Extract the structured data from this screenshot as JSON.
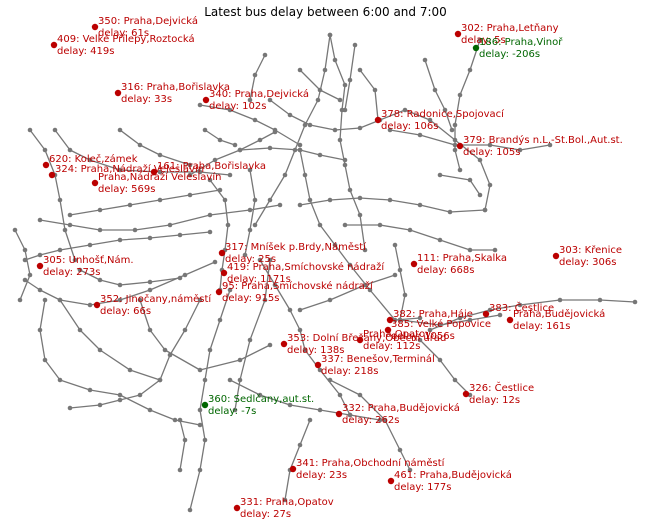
{
  "title": "Latest bus delay between 6:00 and 7:00",
  "colors": {
    "late": "#bb0000",
    "early": "#006600",
    "network": "#777777"
  },
  "stops": [
    {
      "line": "350",
      "stop": "Praha,Dejvická",
      "delay": "61s",
      "status": "late"
    },
    {
      "line": "409",
      "stop": "Velké Přílepy,Roztocká",
      "delay": "419s",
      "status": "late"
    },
    {
      "line": "302",
      "stop": "Praha,Letňany",
      "delay": "5s",
      "status": "late"
    },
    {
      "line": "186",
      "stop": "Praha,Vinoř",
      "delay": "-206s",
      "status": "early"
    },
    {
      "line": "316",
      "stop": "Praha,Bořislavka",
      "delay": "33s",
      "status": "late"
    },
    {
      "line": "340",
      "stop": "Praha,Dejvická",
      "delay": "102s",
      "status": "late"
    },
    {
      "line": "378",
      "stop": "Radonice,Spojovací",
      "delay": "106s",
      "status": "late"
    },
    {
      "line": "379",
      "stop": "Brandýs n.L.-St.Bol.,Aut.st.",
      "delay": "105s",
      "status": "late"
    },
    {
      "line": "620",
      "stop": "Koleč,zámek",
      "delay": "",
      "status": "late"
    },
    {
      "line": "324",
      "stop": "Praha,Nádraží Veleslavín",
      "delay": "",
      "status": "late"
    },
    {
      "line": "161",
      "stop": "Praha,Bořislavka",
      "delay": "",
      "status": "late"
    },
    {
      "line": "",
      "stop": "Praha,Nádraží Veleslavín",
      "delay": "569s",
      "status": "late"
    },
    {
      "line": "317",
      "stop": "Mníšek p.Brdy,Náměstí",
      "delay": "25s",
      "status": "late"
    },
    {
      "line": "419",
      "stop": "Praha,Smíchovské nádraží",
      "delay": "1171s",
      "status": "late"
    },
    {
      "line": "95",
      "stop": "Praha,Smíchovské nádraží",
      "delay": "915s",
      "status": "late"
    },
    {
      "line": "111",
      "stop": "Praha,Skalka",
      "delay": "668s",
      "status": "late"
    },
    {
      "line": "303",
      "stop": "Křenice",
      "delay": "306s",
      "status": "late"
    },
    {
      "line": "305",
      "stop": "Unhošť,Nám.",
      "delay": "273s",
      "status": "late"
    },
    {
      "line": "352",
      "stop": "Jinočany,náměstí",
      "delay": "66s",
      "status": "late"
    },
    {
      "line": "382",
      "stop": "Praha,Háje",
      "delay": "",
      "status": "late"
    },
    {
      "line": "385",
      "stop": "Velké Popovice",
      "delay": "1056s",
      "status": "late"
    },
    {
      "line": "",
      "stop": "Praha,Opatov",
      "delay": "112s",
      "status": "late"
    },
    {
      "line": "353",
      "stop": "Dolní Břežany,Obecní úřad",
      "delay": "138s",
      "status": "late"
    },
    {
      "line": "337",
      "stop": "Benešov,Terminál",
      "delay": "218s",
      "status": "late"
    },
    {
      "line": "383",
      "stop": "Čestlice",
      "delay": "",
      "status": "late"
    },
    {
      "line": "",
      "stop": "Praha,Budějovická",
      "delay": "161s",
      "status": "late"
    },
    {
      "line": "360",
      "stop": "Sedlčany,aut.st.",
      "delay": "-7s",
      "status": "early"
    },
    {
      "line": "326",
      "stop": "Čestlice",
      "delay": "12s",
      "status": "late"
    },
    {
      "line": "332",
      "stop": "Praha,Budějovická",
      "delay": "262s",
      "status": "late"
    },
    {
      "line": "341",
      "stop": "Praha,Obchodní náměstí",
      "delay": "23s",
      "status": "late"
    },
    {
      "line": "461",
      "stop": "Praha,Budějovická",
      "delay": "177s",
      "status": "late"
    },
    {
      "line": "331",
      "stop": "Praha,Opatov",
      "delay": "27s",
      "status": "late"
    }
  ]
}
